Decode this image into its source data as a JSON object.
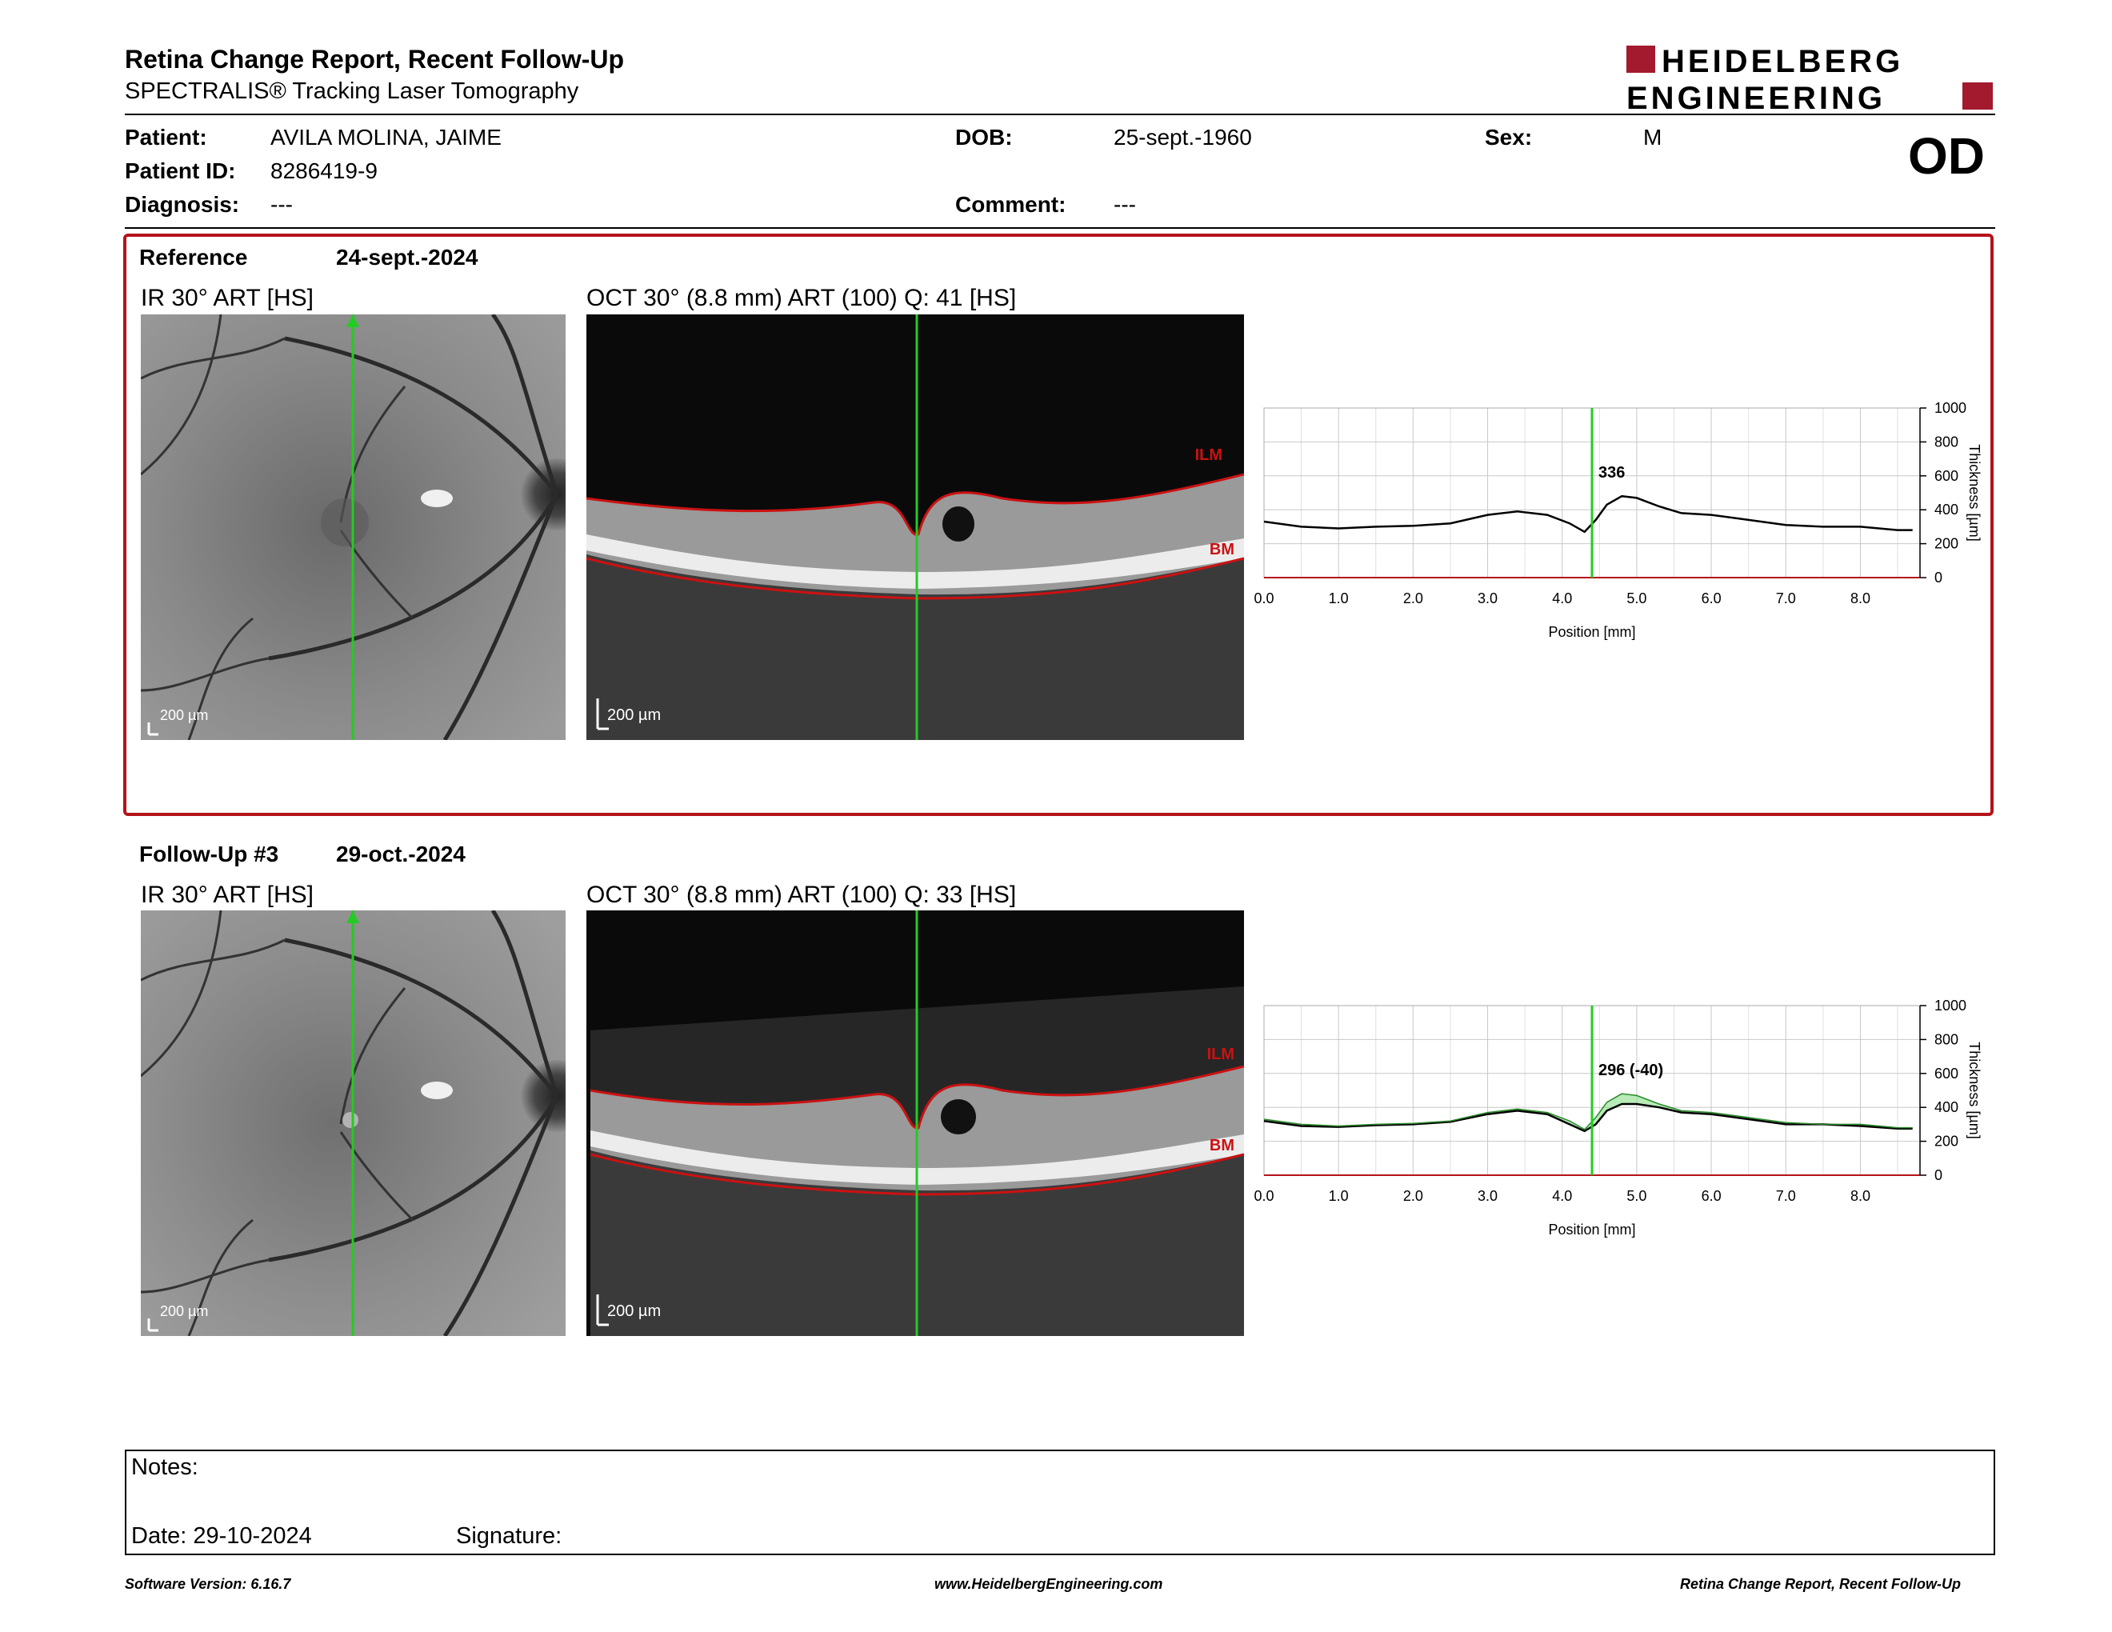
{
  "header": {
    "title": "Retina Change Report, Recent Follow-Up",
    "subtitle": "SPECTRALIS® Tracking Laser Tomography",
    "logo_line1": "HEIDELBERG",
    "logo_line2": "ENGINEERING",
    "eye": "OD"
  },
  "patient": {
    "patient_label": "Patient:",
    "patient_value": "AVILA MOLINA, JAIME",
    "id_label": "Patient ID:",
    "id_value": "8286419-9",
    "diagnosis_label": "Diagnosis:",
    "diagnosis_value": "---",
    "dob_label": "DOB:",
    "dob_value": "25-sept.-1960",
    "comment_label": "Comment:",
    "comment_value": "---",
    "sex_label": "Sex:",
    "sex_value": "M"
  },
  "reference": {
    "label": "Reference",
    "date": "24-sept.-2024",
    "ir_caption": "IR 30° ART [HS]",
    "oct_caption": "OCT 30° (8.8 mm) ART (100) Q: 41 [HS]",
    "scale": "200 µm",
    "ilm": "ILM",
    "bm": "BM"
  },
  "followup": {
    "label": "Follow-Up #3",
    "date": "29-oct.-2024",
    "ir_caption": "IR 30° ART [HS]",
    "oct_caption": "OCT 30° (8.8 mm) ART (100) Q: 33 [HS]",
    "scale": "200 µm",
    "ilm": "ILM",
    "bm": "BM"
  },
  "chart_data": [
    {
      "type": "line",
      "xlabel": "Position [mm]",
      "ylabel": "Thickness [µm]",
      "xlim": [
        0,
        8.8
      ],
      "ylim": [
        0,
        1000
      ],
      "xticks": [
        "0.0",
        "1.0",
        "2.0",
        "3.0",
        "4.0",
        "5.0",
        "6.0",
        "7.0",
        "8.0"
      ],
      "yticks": [
        "0",
        "200",
        "400",
        "600",
        "800",
        "1000"
      ],
      "grid": true,
      "marker_x": 4.4,
      "marker_label": "336",
      "series": [
        {
          "x": [
            0,
            0.5,
            1,
            1.5,
            2,
            2.5,
            3,
            3.4,
            3.8,
            4.1,
            4.3,
            4.45,
            4.6,
            4.8,
            5.0,
            5.3,
            5.6,
            6,
            6.5,
            7,
            7.5,
            8,
            8.5,
            8.7
          ],
          "values": [
            330,
            300,
            290,
            300,
            305,
            320,
            370,
            390,
            370,
            320,
            270,
            340,
            430,
            480,
            470,
            420,
            380,
            370,
            340,
            310,
            300,
            300,
            280,
            280
          ]
        }
      ]
    },
    {
      "type": "line",
      "xlabel": "Position [mm]",
      "ylabel": "Thickness [µm]",
      "xlim": [
        0,
        8.8
      ],
      "ylim": [
        0,
        1000
      ],
      "xticks": [
        "0.0",
        "1.0",
        "2.0",
        "3.0",
        "4.0",
        "5.0",
        "6.0",
        "7.0",
        "8.0"
      ],
      "yticks": [
        "0",
        "200",
        "400",
        "600",
        "800",
        "1000"
      ],
      "grid": true,
      "marker_x": 4.4,
      "marker_label": "296 (-40)",
      "series": [
        {
          "x": [
            0,
            0.5,
            1,
            1.5,
            2,
            2.5,
            3,
            3.4,
            3.8,
            4.1,
            4.3,
            4.45,
            4.6,
            4.8,
            5.0,
            5.3,
            5.6,
            6,
            6.5,
            7,
            7.5,
            8,
            8.5,
            8.7
          ],
          "values": [
            320,
            290,
            285,
            295,
            300,
            315,
            360,
            380,
            360,
            300,
            260,
            300,
            380,
            420,
            420,
            400,
            370,
            360,
            330,
            300,
            300,
            290,
            275,
            275
          ]
        },
        {
          "x": [
            0,
            0.5,
            1,
            1.5,
            2,
            2.5,
            3,
            3.4,
            3.8,
            4.1,
            4.3,
            4.45,
            4.6,
            4.8,
            5.0,
            5.3,
            5.6,
            6,
            6.5,
            7,
            7.5,
            8,
            8.5,
            8.7
          ],
          "values": [
            330,
            300,
            290,
            300,
            305,
            320,
            370,
            390,
            370,
            320,
            270,
            340,
            430,
            480,
            470,
            420,
            380,
            370,
            340,
            310,
            300,
            300,
            280,
            280
          ]
        }
      ]
    }
  ],
  "notes": {
    "notes_label": "Notes:",
    "date_label": "Date: 29-10-2024",
    "signature_label": "Signature:"
  },
  "footer": {
    "left": "Software Version: 6.16.7",
    "center": "www.HeidelbergEngineering.com",
    "right": "Retina Change Report, Recent Follow-Up"
  },
  "colors": {
    "brand_red": "#a3192e",
    "ref_border": "#b5121b",
    "marker_green": "#22cc22",
    "layer_red": "#cc1111"
  }
}
